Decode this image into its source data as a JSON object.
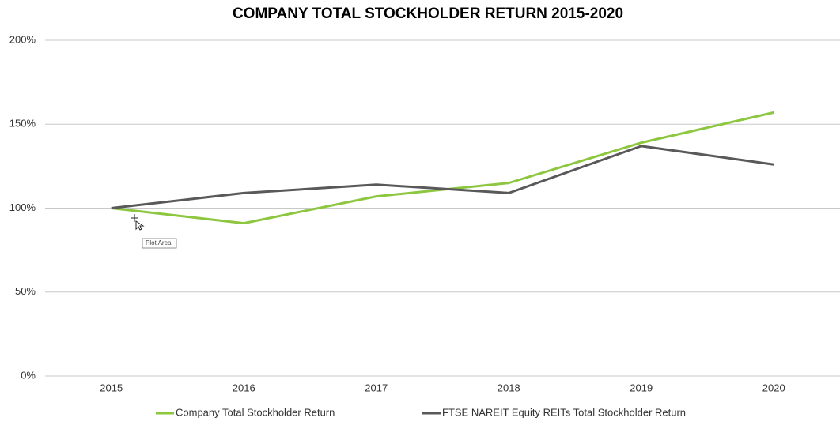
{
  "chart_data": {
    "type": "line",
    "title": "COMPANY TOTAL STOCKHOLDER RETURN 2015-2020",
    "categories": [
      "2015",
      "2016",
      "2017",
      "2018",
      "2019",
      "2020"
    ],
    "series": [
      {
        "name": "Company Total Stockholder Return",
        "color": "#8dc63f",
        "values": [
          100,
          91,
          107,
          115,
          139,
          157
        ]
      },
      {
        "name": "FTSE NAREIT Equity REITs Total Stockholder Return",
        "color": "#595959",
        "values": [
          100,
          109,
          114,
          109,
          137,
          126
        ]
      }
    ],
    "ylim": [
      0,
      200
    ],
    "yticks": [
      {
        "value": 0,
        "label": "0%"
      },
      {
        "value": 50,
        "label": "50%"
      },
      {
        "value": 100,
        "label": "100%"
      },
      {
        "value": 150,
        "label": "150%"
      },
      {
        "value": 200,
        "label": "200%"
      }
    ],
    "grid": true,
    "legend": "bottom",
    "tooltip": "Plot Area"
  }
}
